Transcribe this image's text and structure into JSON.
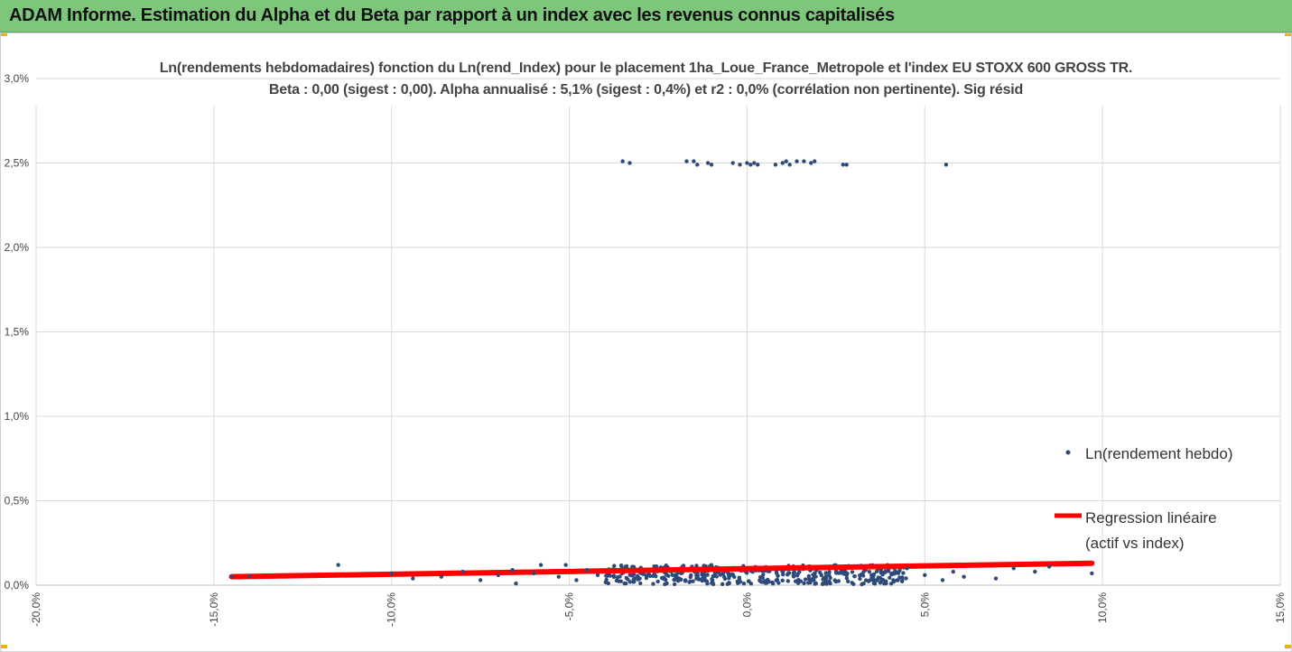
{
  "banner": {
    "title": "ADAM Informe. Estimation du Alpha et du Beta par rapport à un index avec les revenus connus capitalisés"
  },
  "colors": {
    "banner": "#7dc67c",
    "points": "#2e4a7a",
    "regression": "#ff0000",
    "grid": "#d9d9d9"
  },
  "chart_data": {
    "type": "scatter",
    "title_lines": [
      "Ln(rendements hebdomadaires) fonction du Ln(rend_Index)  pour le placement 1ha_Loue_France_Metropole et l'index EU STOXX 600 GROSS TR.",
      "Beta : 0,00 (sigest : 0,00). Alpha annualisé : 5,1% (sigest : 0,4%) et r2 : 0,0% (corrélation non pertinente). Sig résid"
    ],
    "xlim": [
      -0.2,
      0.15
    ],
    "ylim": [
      0.0,
      0.03
    ],
    "x_ticks": [
      {
        "v": -0.2,
        "label": "-20,0%"
      },
      {
        "v": -0.15,
        "label": "-15,0%"
      },
      {
        "v": -0.1,
        "label": "-10,0%"
      },
      {
        "v": -0.05,
        "label": "-5,0%"
      },
      {
        "v": 0.0,
        "label": "0,0%"
      },
      {
        "v": 0.05,
        "label": "5,0%"
      },
      {
        "v": 0.1,
        "label": "10,0%"
      },
      {
        "v": 0.15,
        "label": "15,0%"
      }
    ],
    "y_ticks": [
      {
        "v": 0.0,
        "label": "0,0%"
      },
      {
        "v": 0.005,
        "label": "0,5%"
      },
      {
        "v": 0.01,
        "label": "1,0%"
      },
      {
        "v": 0.015,
        "label": "1,5%"
      },
      {
        "v": 0.02,
        "label": "2,0%"
      },
      {
        "v": 0.025,
        "label": "2,5%"
      },
      {
        "v": 0.03,
        "label": "3,0%"
      }
    ],
    "grid": true,
    "legend_position": "right",
    "series": [
      {
        "name": "Ln(rendement hebdo)",
        "kind": "scatter",
        "points": [
          [
            -0.035,
            0.0251
          ],
          [
            -0.033,
            0.025
          ],
          [
            -0.017,
            0.0251
          ],
          [
            -0.015,
            0.0251
          ],
          [
            -0.014,
            0.0249
          ],
          [
            -0.011,
            0.025
          ],
          [
            -0.01,
            0.0249
          ],
          [
            -0.004,
            0.025
          ],
          [
            -0.002,
            0.0249
          ],
          [
            0.0,
            0.025
          ],
          [
            0.001,
            0.0249
          ],
          [
            0.002,
            0.025
          ],
          [
            0.003,
            0.0249
          ],
          [
            0.008,
            0.0249
          ],
          [
            0.01,
            0.025
          ],
          [
            0.011,
            0.0251
          ],
          [
            0.012,
            0.0249
          ],
          [
            0.014,
            0.0251
          ],
          [
            0.016,
            0.0251
          ],
          [
            0.018,
            0.025
          ],
          [
            0.019,
            0.0251
          ],
          [
            0.027,
            0.0249
          ],
          [
            0.028,
            0.0249
          ],
          [
            0.056,
            0.0249
          ],
          [
            -0.145,
            0.0005
          ],
          [
            -0.14,
            0.0005
          ],
          [
            -0.115,
            0.0012
          ],
          [
            -0.1,
            0.0007
          ],
          [
            -0.094,
            0.0004
          ],
          [
            -0.086,
            0.0005
          ],
          [
            -0.08,
            0.0008
          ],
          [
            -0.075,
            0.0003
          ],
          [
            -0.07,
            0.0006
          ],
          [
            -0.066,
            0.0009
          ],
          [
            -0.065,
            0.0001
          ],
          [
            -0.06,
            0.0007
          ],
          [
            -0.058,
            0.0012
          ],
          [
            -0.053,
            0.0005
          ],
          [
            -0.051,
            0.0012
          ],
          [
            -0.048,
            0.0003
          ],
          [
            -0.045,
            0.0009
          ],
          [
            -0.042,
            0.0006
          ],
          [
            0.045,
            0.001
          ],
          [
            0.05,
            0.0006
          ],
          [
            0.055,
            0.0003
          ],
          [
            0.058,
            0.0008
          ],
          [
            0.061,
            0.0005
          ],
          [
            0.07,
            0.0004
          ],
          [
            0.075,
            0.001
          ],
          [
            0.081,
            0.0008
          ],
          [
            0.085,
            0.0011
          ],
          [
            0.097,
            0.0007
          ]
        ]
      },
      {
        "name": "Regression linéaire (actif vs index)",
        "legend_lines": [
          "Regression linéaire",
          "(actif vs index)"
        ],
        "kind": "line",
        "x": [
          -0.145,
          0.097
        ],
        "y": [
          0.0005,
          0.0013
        ]
      }
    ]
  }
}
